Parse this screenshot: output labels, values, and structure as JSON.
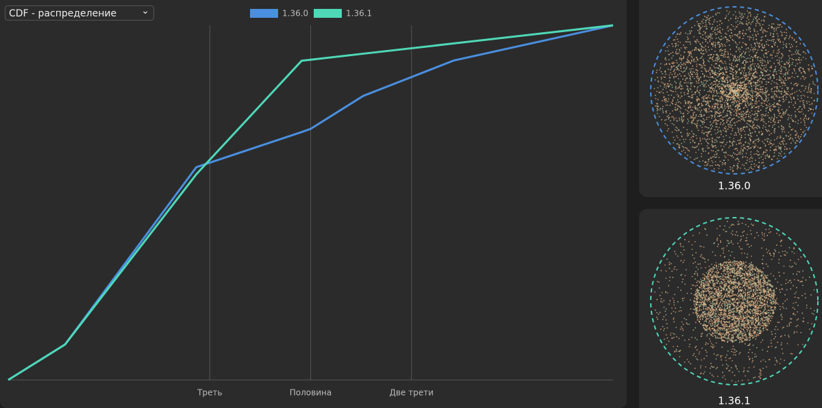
{
  "dropdown": {
    "label": "CDF - распределение"
  },
  "chart_data": {
    "type": "line",
    "x": [
      0,
      0.094,
      0.311,
      0.485,
      0.5,
      0.587,
      0.737,
      1
    ],
    "xlim": [
      0,
      1
    ],
    "xticks": [
      {
        "value": 0.3333,
        "label": "Треть"
      },
      {
        "value": 0.5,
        "label": "Половина"
      },
      {
        "value": 0.6667,
        "label": "Две трети"
      }
    ],
    "ylim": [
      0,
      1
    ],
    "grid": true,
    "series": [
      {
        "name": "1.36.0",
        "color": "#4a8fe0",
        "values": [
          0,
          0.1,
          0.6,
          0.699,
          0.708,
          0.801,
          0.901,
          1
        ]
      },
      {
        "name": "1.36.1",
        "color": "#4fd8b8",
        "values": [
          0,
          0.1,
          0.58,
          0.9,
          0.903,
          0.92,
          0.949,
          1
        ]
      }
    ]
  },
  "panels": [
    {
      "label": "1.36.0"
    },
    {
      "label": "1.36.1"
    }
  ]
}
